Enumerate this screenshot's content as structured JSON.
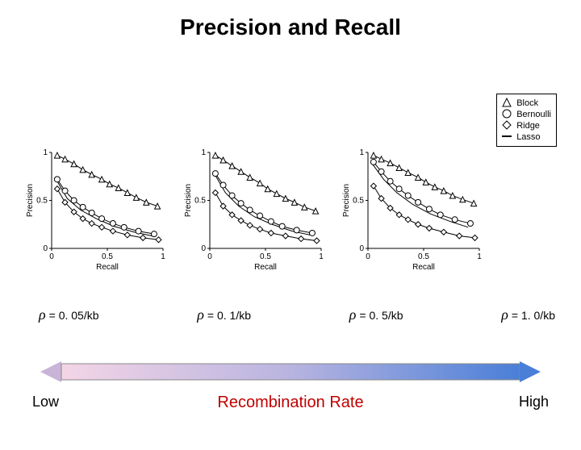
{
  "title": "Precision and Recall",
  "legend": {
    "border_color": "#000000",
    "items": [
      {
        "label": "Block",
        "marker": "triangle"
      },
      {
        "label": "Bernoulli",
        "marker": "circle"
      },
      {
        "label": "Ridge",
        "marker": "diamond"
      },
      {
        "label": "Lasso",
        "marker": "line"
      }
    ]
  },
  "axes": {
    "xlabel": "Recall",
    "ylabel": "Precision",
    "xlim": [
      0,
      1
    ],
    "ylim": [
      0,
      1
    ],
    "xticks": [
      0,
      0.5,
      1
    ],
    "yticks": [
      0,
      0.5,
      1
    ],
    "xtick_labels": [
      "0",
      "0.5",
      "1"
    ],
    "ytick_labels": [
      "0",
      "0.5",
      "1"
    ],
    "label_fontsize": 10,
    "tick_fontsize": 10,
    "line_color": "#000000"
  },
  "series_style": {
    "line_color": "#000000",
    "line_width": 1,
    "marker_size": 5,
    "marker_fill": "none",
    "marker_stroke": "#000000"
  },
  "charts": [
    {
      "rate_label": "= 0. 05/kb",
      "series": {
        "block": {
          "x": [
            0.05,
            0.12,
            0.2,
            0.28,
            0.36,
            0.45,
            0.52,
            0.6,
            0.68,
            0.76,
            0.85,
            0.95
          ],
          "y": [
            0.97,
            0.93,
            0.88,
            0.82,
            0.77,
            0.72,
            0.67,
            0.63,
            0.58,
            0.53,
            0.48,
            0.44
          ]
        },
        "bernoulli": {
          "x": [
            0.05,
            0.12,
            0.2,
            0.28,
            0.36,
            0.45,
            0.55,
            0.65,
            0.78,
            0.92
          ],
          "y": [
            0.72,
            0.6,
            0.5,
            0.43,
            0.37,
            0.31,
            0.26,
            0.22,
            0.18,
            0.15
          ]
        },
        "ridge": {
          "x": [
            0.05,
            0.12,
            0.2,
            0.28,
            0.36,
            0.45,
            0.55,
            0.68,
            0.82,
            0.96
          ],
          "y": [
            0.62,
            0.48,
            0.38,
            0.31,
            0.26,
            0.22,
            0.18,
            0.14,
            0.11,
            0.09
          ]
        },
        "lasso": {
          "x": [
            0.04,
            0.14,
            0.26,
            0.4,
            0.56,
            0.74,
            0.9
          ],
          "y": [
            0.72,
            0.52,
            0.4,
            0.31,
            0.23,
            0.17,
            0.13
          ]
        }
      }
    },
    {
      "rate_label": "= 0. 1/kb",
      "series": {
        "block": {
          "x": [
            0.05,
            0.12,
            0.2,
            0.28,
            0.36,
            0.45,
            0.52,
            0.6,
            0.68,
            0.76,
            0.85,
            0.95
          ],
          "y": [
            0.97,
            0.92,
            0.86,
            0.8,
            0.74,
            0.68,
            0.62,
            0.57,
            0.52,
            0.48,
            0.43,
            0.39
          ]
        },
        "bernoulli": {
          "x": [
            0.05,
            0.12,
            0.2,
            0.28,
            0.36,
            0.45,
            0.55,
            0.65,
            0.78,
            0.92
          ],
          "y": [
            0.78,
            0.66,
            0.55,
            0.47,
            0.4,
            0.34,
            0.28,
            0.23,
            0.19,
            0.16
          ]
        },
        "ridge": {
          "x": [
            0.05,
            0.12,
            0.2,
            0.28,
            0.36,
            0.45,
            0.55,
            0.68,
            0.82,
            0.96
          ],
          "y": [
            0.58,
            0.44,
            0.35,
            0.29,
            0.24,
            0.2,
            0.16,
            0.13,
            0.1,
            0.08
          ]
        },
        "lasso": {
          "x": [
            0.04,
            0.14,
            0.26,
            0.4,
            0.56,
            0.74,
            0.9
          ],
          "y": [
            0.78,
            0.58,
            0.44,
            0.33,
            0.25,
            0.18,
            0.14
          ]
        }
      }
    },
    {
      "rate_label": "= 0. 5/kb",
      "series": {
        "block": {
          "x": [
            0.05,
            0.12,
            0.2,
            0.28,
            0.36,
            0.45,
            0.52,
            0.6,
            0.68,
            0.76,
            0.85,
            0.95
          ],
          "y": [
            0.97,
            0.93,
            0.89,
            0.84,
            0.79,
            0.74,
            0.69,
            0.64,
            0.6,
            0.55,
            0.51,
            0.47
          ]
        },
        "bernoulli": {
          "x": [
            0.05,
            0.12,
            0.2,
            0.28,
            0.36,
            0.45,
            0.55,
            0.65,
            0.78,
            0.92
          ],
          "y": [
            0.9,
            0.8,
            0.7,
            0.62,
            0.55,
            0.48,
            0.41,
            0.35,
            0.3,
            0.26
          ]
        },
        "ridge": {
          "x": [
            0.05,
            0.12,
            0.2,
            0.28,
            0.36,
            0.45,
            0.55,
            0.68,
            0.82,
            0.96
          ],
          "y": [
            0.65,
            0.52,
            0.42,
            0.35,
            0.3,
            0.25,
            0.21,
            0.17,
            0.13,
            0.11
          ]
        },
        "lasso": {
          "x": [
            0.04,
            0.14,
            0.26,
            0.4,
            0.56,
            0.74,
            0.9
          ],
          "y": [
            0.88,
            0.72,
            0.58,
            0.46,
            0.36,
            0.28,
            0.22
          ]
        }
      }
    }
  ],
  "rate_labels_row": [
    {
      "label": "= 0. 05/kb"
    },
    {
      "label": "= 0. 1/kb"
    },
    {
      "label": "= 0. 5/kb"
    },
    {
      "label": "= 1. 0/kb"
    }
  ],
  "gradient": {
    "start_color": "#f4d5e6",
    "mid_color": "#b8b4e0",
    "end_color": "#4a7fd8",
    "arrow_color_left": "#c9b4d8",
    "arrow_color_right": "#4a7fd8",
    "border_color": "#888888"
  },
  "bottom_labels": {
    "low": "Low",
    "center": "Recombination Rate",
    "high": "High",
    "center_color": "#c00000"
  }
}
